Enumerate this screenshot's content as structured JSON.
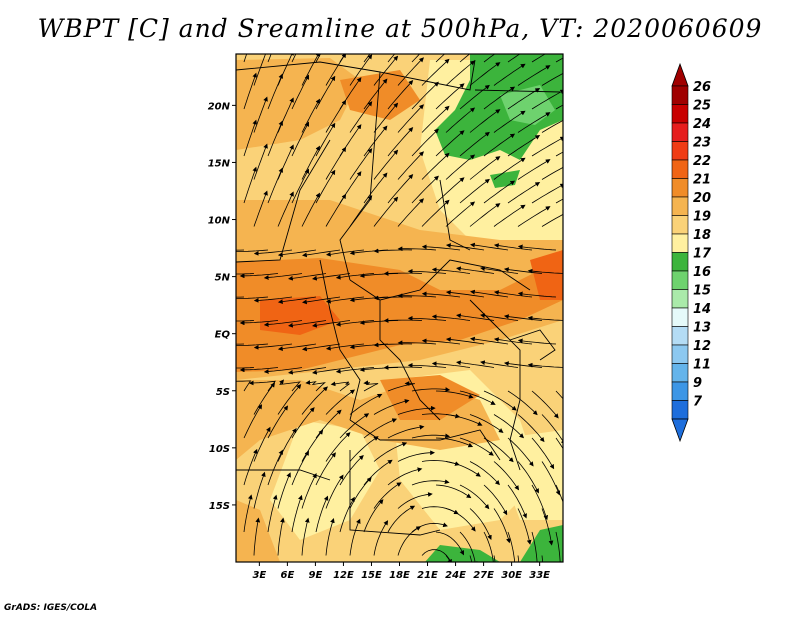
{
  "title": "WBPT [C] and Sreamline at 500hPa, VT: 2020060609",
  "credit": "GrADS: IGES/COLA",
  "map": {
    "lat_ticks": [
      {
        "value": 20,
        "label": "20N"
      },
      {
        "value": 15,
        "label": "15N"
      },
      {
        "value": 10,
        "label": "10N"
      },
      {
        "value": 5,
        "label": "5N"
      },
      {
        "value": 0,
        "label": "EQ"
      },
      {
        "value": -5,
        "label": "5S"
      },
      {
        "value": -10,
        "label": "10S"
      },
      {
        "value": -15,
        "label": "15S"
      }
    ],
    "lon_ticks": [
      {
        "value": 3,
        "label": "3E"
      },
      {
        "value": 6,
        "label": "6E"
      },
      {
        "value": 9,
        "label": "9E"
      },
      {
        "value": 12,
        "label": "12E"
      },
      {
        "value": 15,
        "label": "15E"
      },
      {
        "value": 18,
        "label": "18E"
      },
      {
        "value": 21,
        "label": "21E"
      },
      {
        "value": 24,
        "label": "24E"
      },
      {
        "value": 27,
        "label": "27E"
      },
      {
        "value": 30,
        "label": "30E"
      },
      {
        "value": 33,
        "label": "33E"
      }
    ],
    "lon_range": [
      0.5,
      35.5
    ],
    "lat_range": [
      -20,
      24.5
    ]
  },
  "colorbar": {
    "levels": [
      {
        "label": "26",
        "color": "#a00000"
      },
      {
        "label": "25",
        "color": "#c80000"
      },
      {
        "label": "24",
        "color": "#e61e1e"
      },
      {
        "label": "23",
        "color": "#f03c14"
      },
      {
        "label": "22",
        "color": "#f06414"
      },
      {
        "label": "21",
        "color": "#f08c28"
      },
      {
        "label": "20",
        "color": "#f5b450"
      },
      {
        "label": "19",
        "color": "#fad278"
      },
      {
        "label": "18",
        "color": "#fff0a0"
      },
      {
        "label": "17",
        "color": "#3cb43c"
      },
      {
        "label": "16",
        "color": "#6ed26e"
      },
      {
        "label": "15",
        "color": "#aaeaaa"
      },
      {
        "label": "14",
        "color": "#e6fafa"
      },
      {
        "label": "13",
        "color": "#b4dcf5"
      },
      {
        "label": "12",
        "color": "#8cc8f0"
      },
      {
        "label": "11",
        "color": "#64b4eb"
      },
      {
        "label": "9",
        "color": "#3c96e6"
      },
      {
        "label": "7",
        "color": "#1e6edc"
      }
    ],
    "bottom_color": "#1e6edc"
  }
}
